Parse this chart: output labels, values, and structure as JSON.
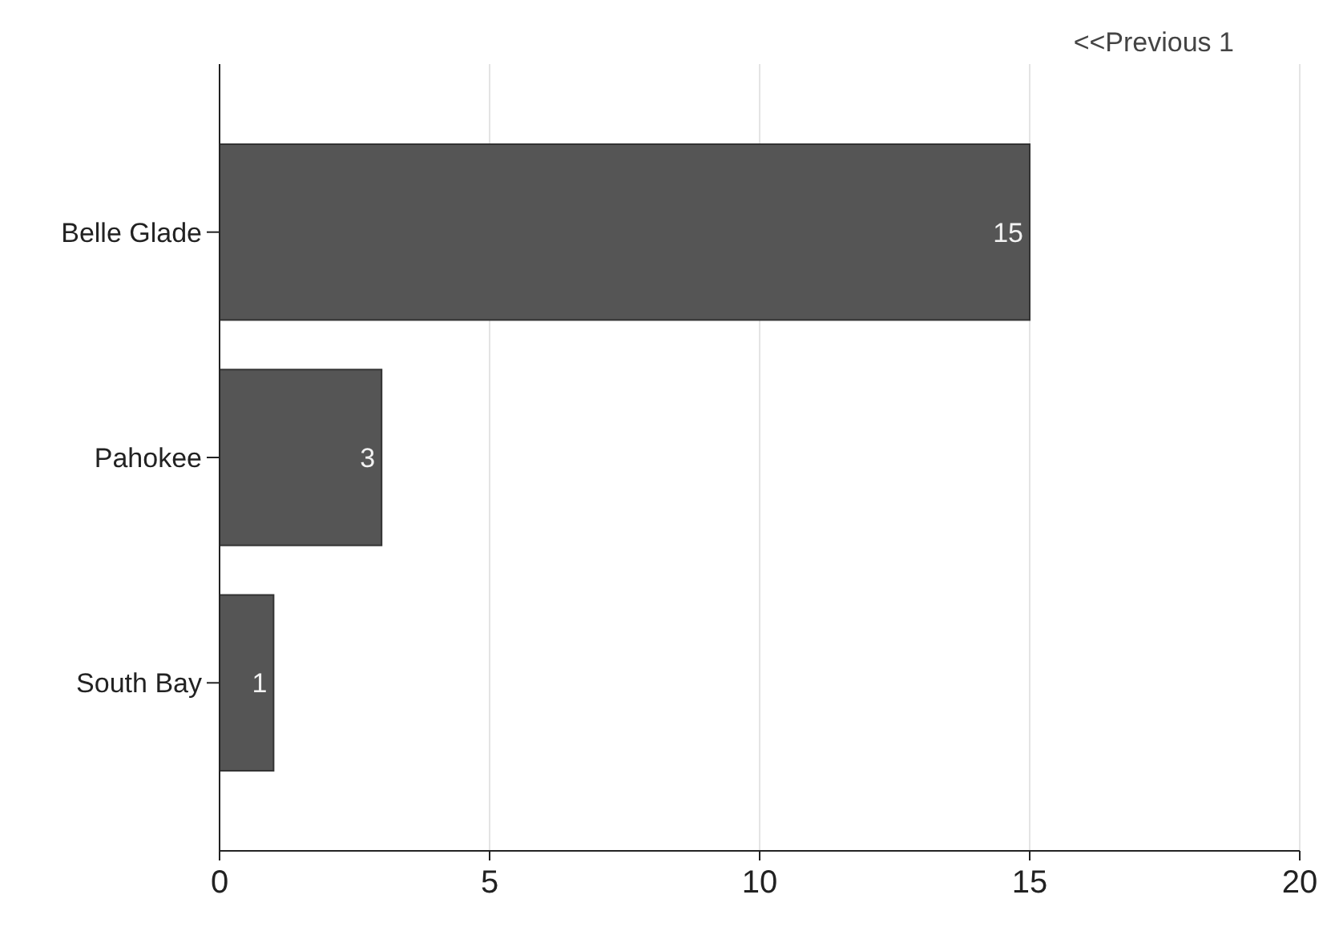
{
  "chart_data": {
    "type": "bar",
    "orientation": "horizontal",
    "categories": [
      "Belle Glade",
      "Pahokee",
      "South Bay"
    ],
    "values": [
      15,
      3,
      1
    ],
    "color": "#555555",
    "xlim": [
      0,
      20
    ],
    "xticks": [
      0,
      5,
      10,
      15,
      20
    ],
    "grid": "x",
    "data_labels": true,
    "annotations": [
      "<<Previous 1"
    ]
  }
}
